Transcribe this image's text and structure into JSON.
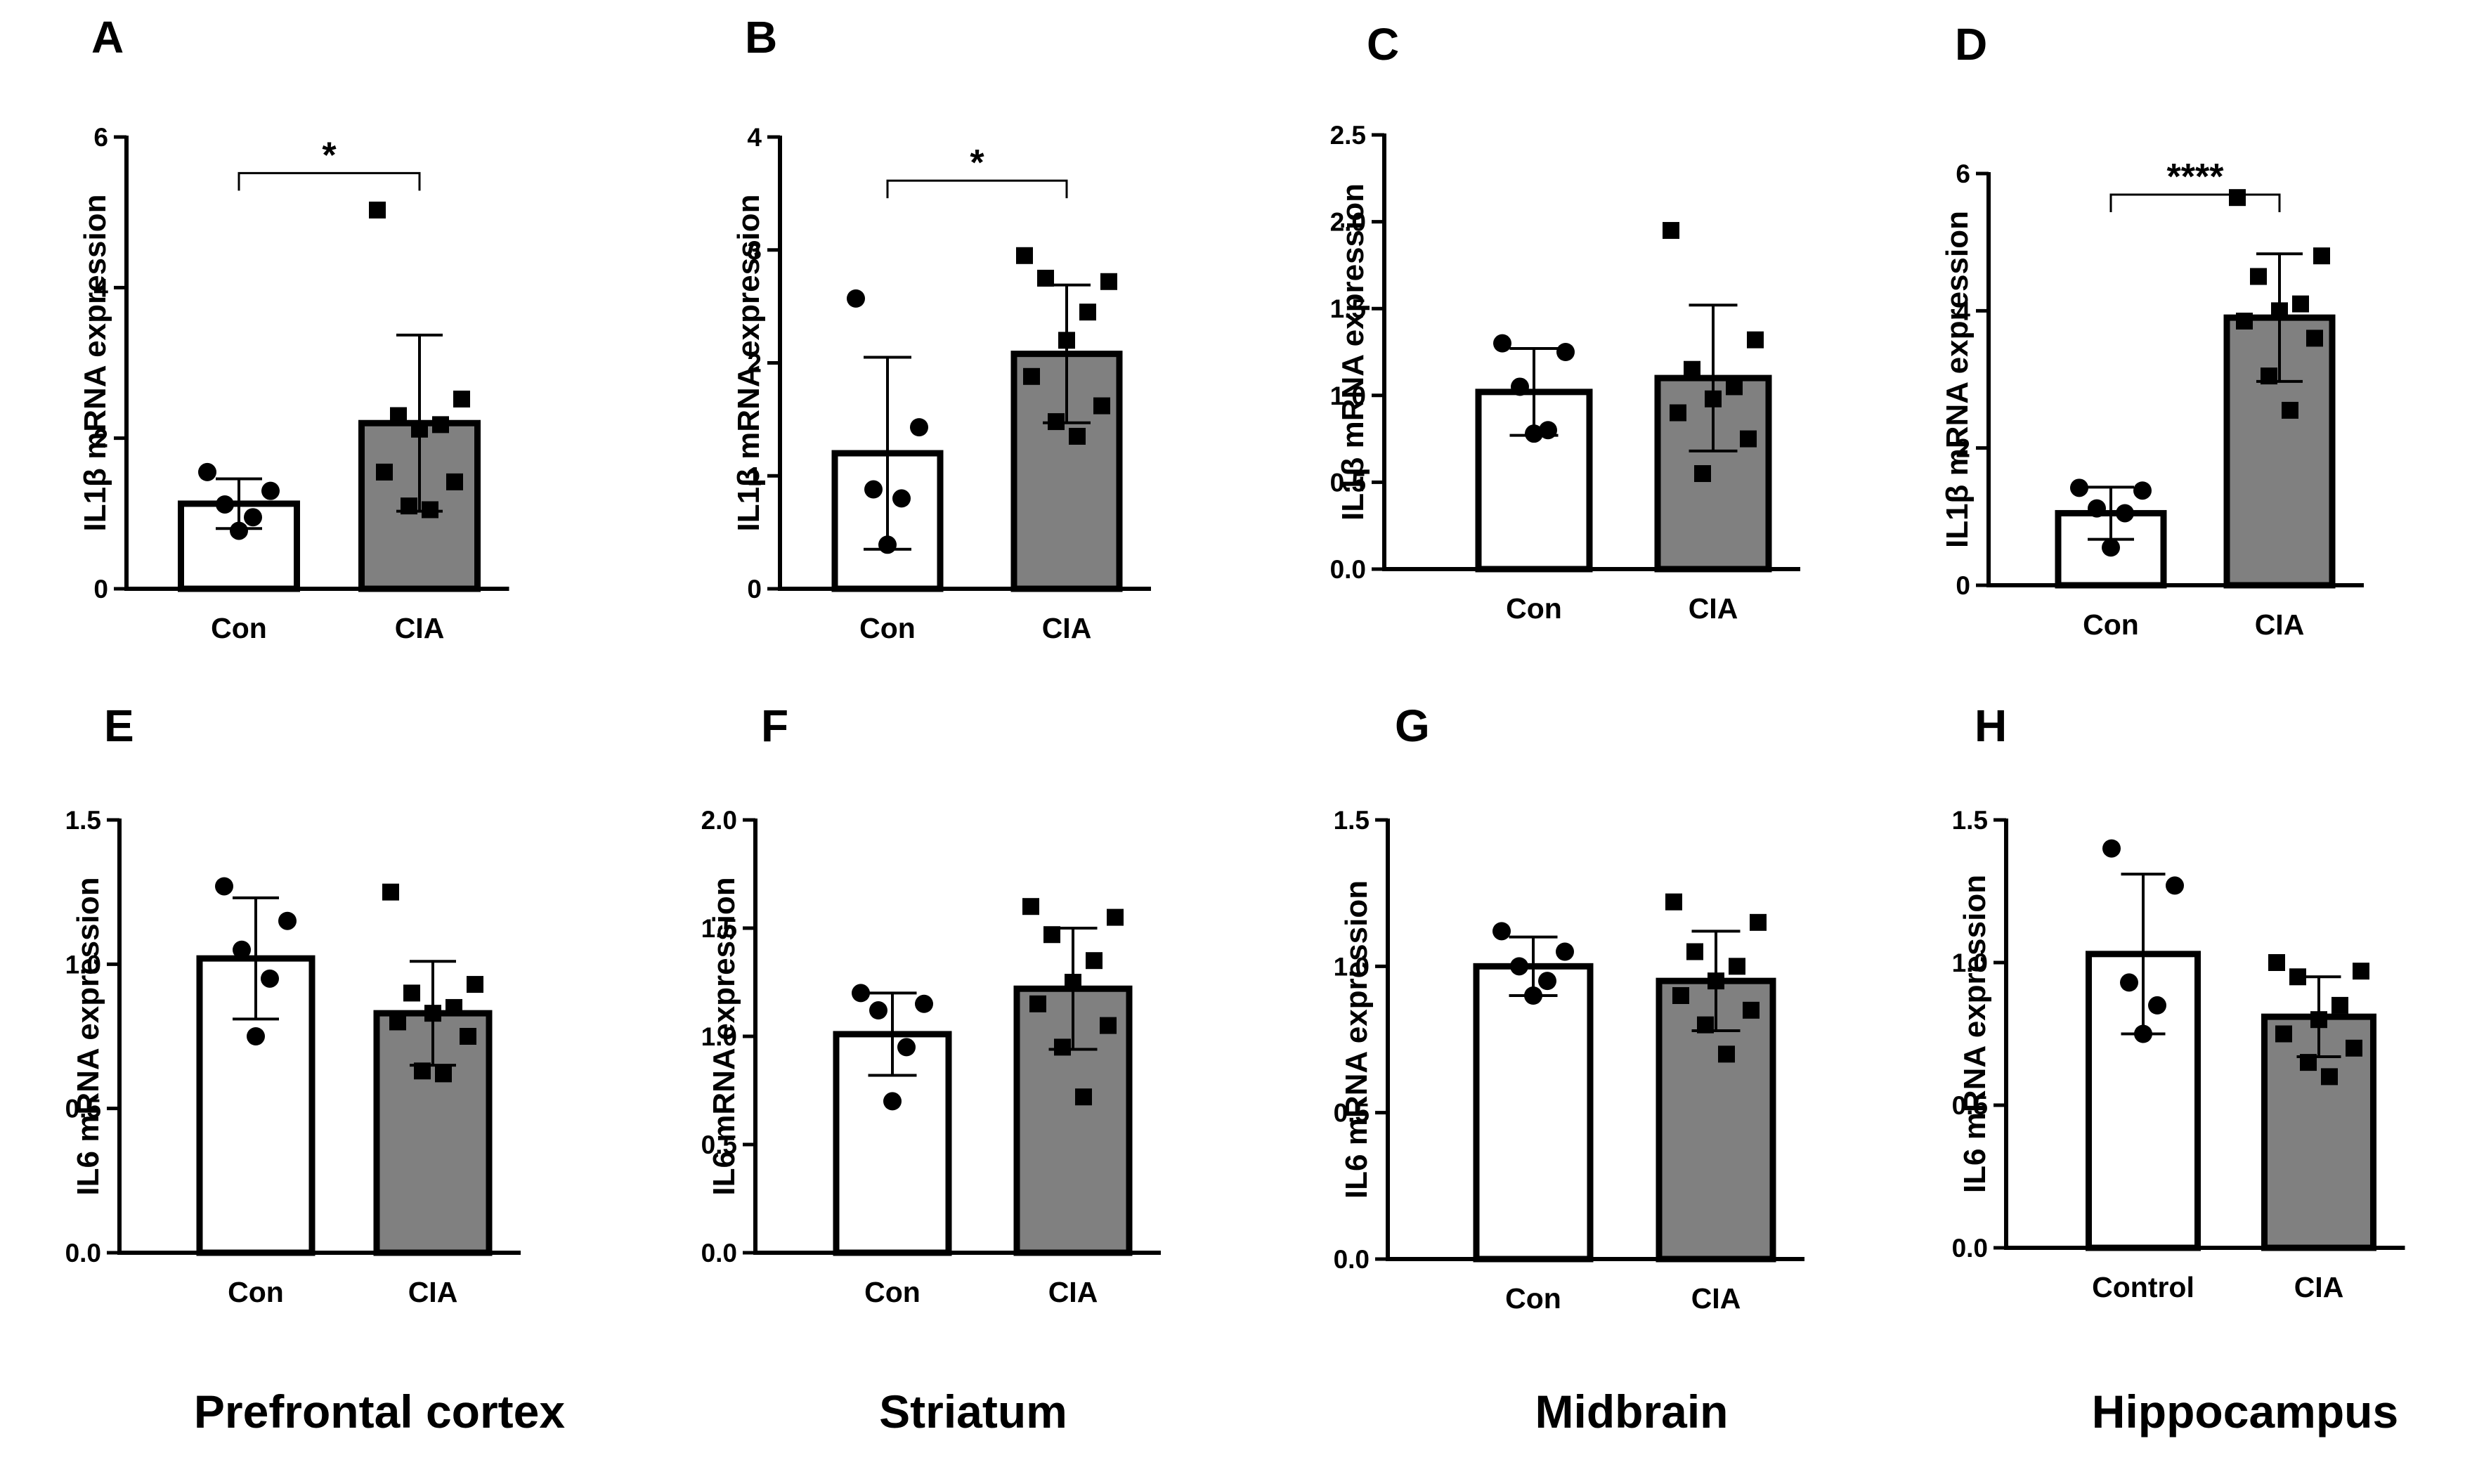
{
  "figure": {
    "regions": [
      "Prefrontal cortex",
      "Striatum",
      "Midbrain",
      "Hippocampus"
    ],
    "colors": {
      "con_fill": "#ffffff",
      "cia_fill": "#808080",
      "ink": "#000000"
    }
  },
  "chart_data": [
    {
      "type": "bar",
      "panel": "A",
      "region": "Prefrontal cortex",
      "ylabel": "IL1β mRNA expression",
      "categories": [
        "Con",
        "CIA"
      ],
      "ylim": [
        0,
        6
      ],
      "yticks": [
        0,
        2,
        4,
        6
      ],
      "tick_format": "int",
      "means": [
        1.13,
        2.2
      ],
      "sd": [
        0.33,
        1.17
      ],
      "points": [
        [
          1.55,
          1.3,
          1.12,
          0.95,
          0.77
        ],
        [
          5.03,
          2.52,
          2.3,
          2.18,
          2.12,
          1.55,
          1.42,
          1.1,
          1.05
        ]
      ],
      "significance": "*",
      "sig_y": 5.8
    },
    {
      "type": "bar",
      "panel": "B",
      "region": "Striatum",
      "ylabel": "IL1β mRNA expression",
      "categories": [
        "Con",
        "CIA"
      ],
      "ylim": [
        0,
        4
      ],
      "yticks": [
        0,
        1,
        2,
        3,
        4
      ],
      "tick_format": "int",
      "means": [
        1.2,
        2.08
      ],
      "sd": [
        0.85,
        0.61
      ],
      "points": [
        [
          2.57,
          1.43,
          0.88,
          0.8,
          0.39
        ],
        [
          2.95,
          2.72,
          2.75,
          2.45,
          2.2,
          1.88,
          1.62,
          1.48,
          1.35
        ]
      ],
      "significance": "*",
      "sig_y": 3.8
    },
    {
      "type": "bar",
      "panel": "C",
      "region": "Midbrain",
      "ylabel": "IL1β mRNA expression",
      "categories": [
        "Con",
        "CIA"
      ],
      "ylim": [
        0,
        2.5
      ],
      "yticks": [
        0,
        0.5,
        1.0,
        1.5,
        2.0,
        2.5
      ],
      "tick_format": "1",
      "means": [
        1.02,
        1.1
      ],
      "sd": [
        0.25,
        0.42
      ],
      "points": [
        [
          1.3,
          1.25,
          1.05,
          0.8,
          0.78
        ],
        [
          1.95,
          1.32,
          1.15,
          1.05,
          0.98,
          0.9,
          0.75,
          0.55
        ]
      ],
      "significance": null,
      "sig_y": null
    },
    {
      "type": "bar",
      "panel": "D",
      "region": "Hippocampus",
      "ylabel": "IL1β mRNA expression",
      "categories": [
        "Con",
        "CIA"
      ],
      "ylim": [
        0,
        6
      ],
      "yticks": [
        0,
        2,
        4,
        6
      ],
      "tick_format": "int",
      "means": [
        1.05,
        3.9
      ],
      "sd": [
        0.38,
        0.93
      ],
      "points": [
        [
          1.42,
          1.38,
          1.12,
          1.05,
          0.55
        ],
        [
          5.65,
          4.8,
          4.5,
          4.1,
          4.0,
          3.85,
          3.6,
          3.05,
          2.55
        ]
      ],
      "significance": "****",
      "sig_y": 6.0
    },
    {
      "type": "bar",
      "panel": "E",
      "region": "Prefrontal cortex",
      "ylabel": "IL6 mRNA expression",
      "categories": [
        "Con",
        "CIA"
      ],
      "ylim": [
        0,
        1.5
      ],
      "yticks": [
        0,
        0.5,
        1.0,
        1.5
      ],
      "tick_format": "1",
      "means": [
        1.02,
        0.83
      ],
      "sd": [
        0.21,
        0.18
      ],
      "points": [
        [
          1.27,
          1.15,
          1.05,
          0.95,
          0.75
        ],
        [
          1.25,
          0.93,
          0.9,
          0.85,
          0.83,
          0.8,
          0.75,
          0.63,
          0.62
        ]
      ],
      "significance": null,
      "sig_y": null
    },
    {
      "type": "bar",
      "panel": "F",
      "region": "Striatum",
      "ylabel": "IL6 mRNA expression",
      "categories": [
        "Con",
        "CIA"
      ],
      "ylim": [
        0,
        2.0
      ],
      "yticks": [
        0,
        0.5,
        1.0,
        1.5,
        2.0
      ],
      "tick_format": "1",
      "means": [
        1.01,
        1.22
      ],
      "sd": [
        0.19,
        0.28
      ],
      "points": [
        [
          1.2,
          1.15,
          1.12,
          0.95,
          0.7
        ],
        [
          1.6,
          1.55,
          1.47,
          1.35,
          1.25,
          1.15,
          1.05,
          0.95,
          0.72
        ]
      ],
      "significance": null,
      "sig_y": null
    },
    {
      "type": "bar",
      "panel": "G",
      "region": "Midbrain",
      "ylabel": "IL6 mRNA expression",
      "categories": [
        "Con",
        "CIA"
      ],
      "ylim": [
        0,
        1.5
      ],
      "yticks": [
        0,
        0.5,
        1.0,
        1.5
      ],
      "tick_format": "1",
      "means": [
        1.0,
        0.95
      ],
      "sd": [
        0.1,
        0.17
      ],
      "points": [
        [
          1.12,
          1.05,
          1.0,
          0.95,
          0.9
        ],
        [
          1.22,
          1.15,
          1.05,
          1.0,
          0.95,
          0.9,
          0.85,
          0.8,
          0.7
        ]
      ],
      "significance": null,
      "sig_y": null
    },
    {
      "type": "bar",
      "panel": "H",
      "region": "Hippocampus",
      "ylabel": "IL6 mRNA expression",
      "categories": [
        "Control",
        "CIA"
      ],
      "ylim": [
        0,
        1.5
      ],
      "yticks": [
        0,
        0.5,
        1.0,
        1.5
      ],
      "tick_format": "1",
      "means": [
        1.03,
        0.81
      ],
      "sd": [
        0.28,
        0.14
      ],
      "points": [
        [
          1.4,
          1.27,
          0.93,
          0.85,
          0.75
        ],
        [
          1.0,
          0.97,
          0.95,
          0.85,
          0.8,
          0.75,
          0.7,
          0.65,
          0.6
        ]
      ],
      "significance": null,
      "sig_y": null
    }
  ]
}
